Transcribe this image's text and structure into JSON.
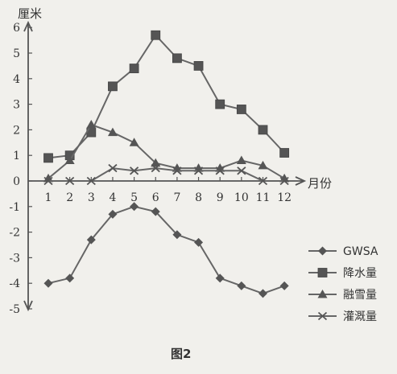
{
  "chart_data": {
    "type": "line",
    "ylabel": "厘米",
    "xlabel": "月份",
    "caption": "图2",
    "categories": [
      "1",
      "2",
      "3",
      "4",
      "5",
      "6",
      "7",
      "8",
      "9",
      "10",
      "11",
      "12"
    ],
    "x_tick_labels": [
      "1",
      "2",
      "3",
      "4",
      "5",
      "6",
      "7",
      "8",
      "9",
      "10",
      "11",
      "12"
    ],
    "y_tick_labels": [
      "6",
      "5",
      "4",
      "3",
      "2",
      "1",
      "0",
      "-1",
      "-2",
      "-3",
      "-4",
      "-5"
    ],
    "ylim": [
      -5,
      6
    ],
    "grid": false,
    "legend_position": "bottom-right",
    "series": [
      {
        "name": "GWSA",
        "marker": "diamond",
        "values": [
          -4.0,
          -3.8,
          -2.3,
          -1.3,
          -1.0,
          -1.2,
          -2.1,
          -2.4,
          -3.8,
          -4.1,
          -4.4,
          -4.1
        ]
      },
      {
        "name": "降水量",
        "marker": "square",
        "values": [
          0.9,
          1.0,
          1.9,
          3.7,
          4.4,
          5.7,
          4.8,
          4.5,
          3.0,
          2.8,
          2.0,
          1.1
        ]
      },
      {
        "name": "融雪量",
        "marker": "triangle",
        "values": [
          0.1,
          0.8,
          2.2,
          1.9,
          1.5,
          0.7,
          0.5,
          0.5,
          0.5,
          0.8,
          0.6,
          0.1
        ]
      },
      {
        "name": "灌溉量",
        "marker": "x",
        "values": [
          0,
          0,
          0,
          0.5,
          0.4,
          0.5,
          0.4,
          0.4,
          0.4,
          0.4,
          0,
          0
        ]
      }
    ],
    "colors": {
      "line": "#666666",
      "marker": "#555555",
      "axis": "#555555",
      "text": "#333333"
    }
  }
}
